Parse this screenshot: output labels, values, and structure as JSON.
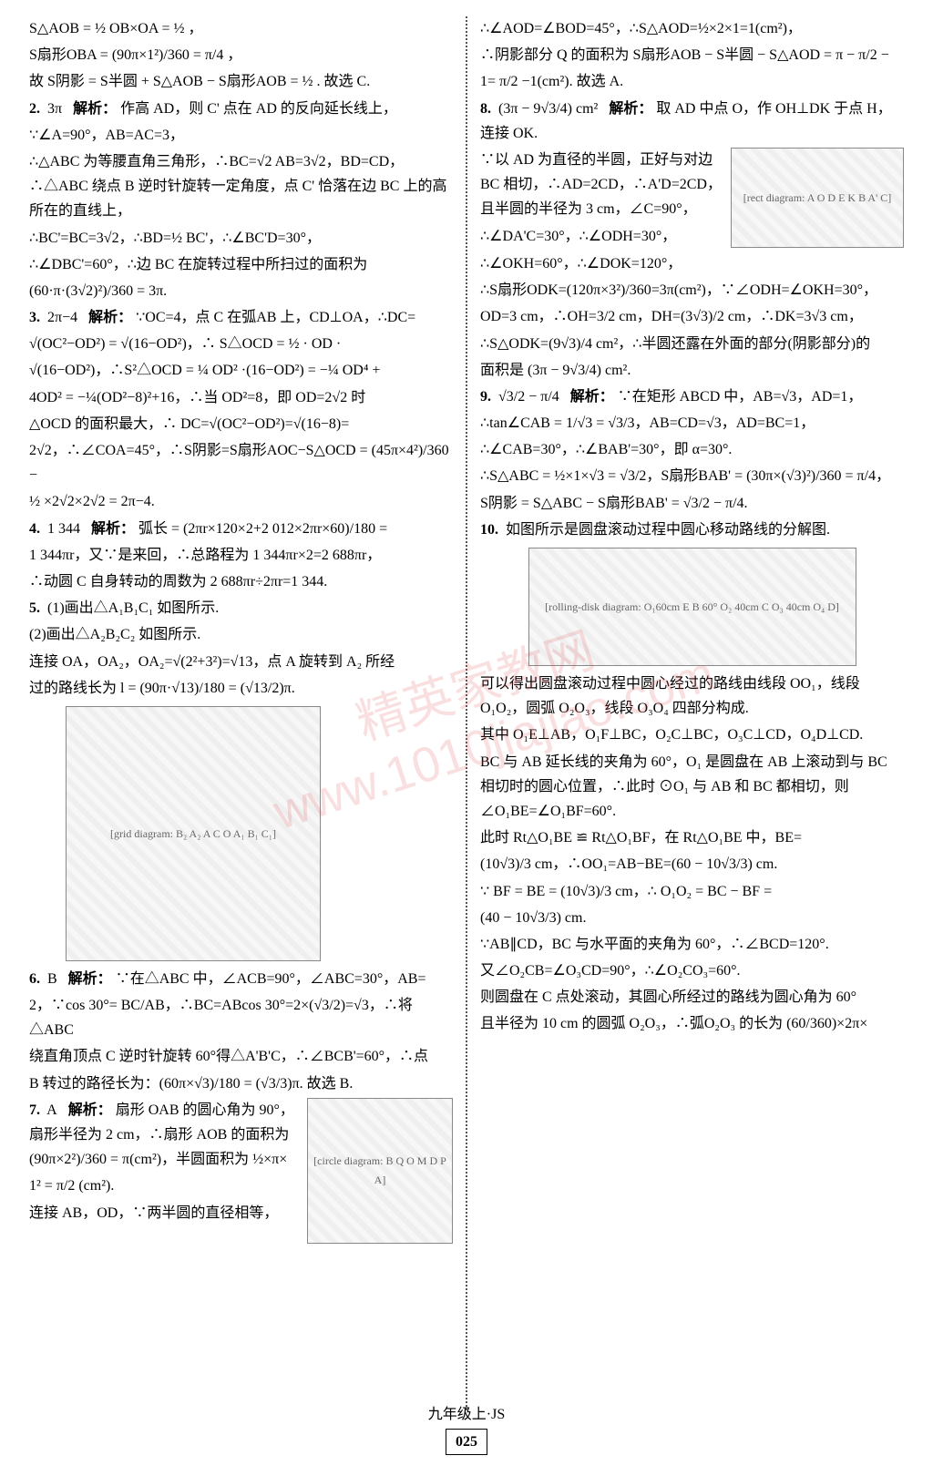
{
  "watermark": {
    "line1": "精英家教网",
    "line2": "www.1010jiajiao.com"
  },
  "footer": {
    "grade": "九年级上·JS",
    "page_number": "025"
  },
  "figures": {
    "grid": "[grid diagram: B₂ A₂ A C O A₁ B₁ C₁]",
    "circle": "[circle diagram: B Q O M D P A]",
    "rect": "[rect diagram: A O D E K B A' C]",
    "roll": "[rolling-disk diagram: O₁60cm E B 60° O₂ 40cm C O₃ 40cm O₄ D]"
  },
  "left": {
    "pre": [
      "S△AOB = ½ OB×OA = ½ ，",
      "S扇形OBA = (90π×1²)/360 = π/4 ，",
      "故 S阴影 = S半圆 + S△AOB − S扇形AOB = ½ . 故选 C."
    ],
    "q2": {
      "num": "2.",
      "answer": "3π",
      "label": "解析：",
      "lines": [
        "作高 AD，则 C' 点在 AD 的反向延长线上，",
        "∵∠A=90°，AB=AC=3，",
        "∴△ABC 为等腰直角三角形，∴BC=√2 AB=3√2，BD=CD，∴△ABC 绕点 B 逆时针旋转一定角度，点 C' 恰落在边 BC 上的高所在的直线上，",
        "∴BC'=BC=3√2，∴BD=½ BC'，∴∠BC'D=30°，",
        "∴∠DBC'=60°，∴边 BC 在旋转过程中所扫过的面积为",
        "(60·π·(3√2)²)/360 = 3π."
      ]
    },
    "q3": {
      "num": "3.",
      "answer": "2π−4",
      "label": "解析：",
      "lines": [
        "∵OC=4，点 C 在弧AB 上，CD⊥OA，∴DC=",
        "√(OC²−OD²) = √(16−OD²)，∴ S△OCD = ½ · OD ·",
        "√(16−OD²)，∴S²△OCD = ¼ OD² ·(16−OD²) = −¼ OD⁴ +",
        "4OD² = −¼(OD²−8)²+16，∴当 OD²=8，即 OD=2√2 时",
        "△OCD 的面积最大，∴ DC=√(OC²−OD²)=√(16−8)=",
        "2√2，∴∠COA=45°，∴S阴影=S扇形AOC−S△OCD = (45π×4²)/360 −",
        "½ ×2√2×2√2 = 2π−4."
      ]
    },
    "q4": {
      "num": "4.",
      "answer": "1 344",
      "label": "解析：",
      "lines": [
        "弧长 = (2πr×120×2+2 012×2πr×60)/180 =",
        "1 344πr，又∵是来回，∴总路程为 1 344πr×2=2 688πr，",
        "∴动圆 C 自身转动的周数为 2 688πr÷2πr=1 344."
      ]
    },
    "q5": {
      "num": "5.",
      "lines_before_fig": [
        "(1)画出△A₁B₁C₁ 如图所示.",
        "(2)画出△A₂B₂C₂ 如图所示.",
        "连接 OA，OA₂，OA₂=√(2²+3²)=√13，点 A 旋转到 A₂ 所经",
        "过的路线长为 l = (90π·√13)/180 = (√13/2)π."
      ]
    },
    "q6": {
      "num": "6.",
      "answer": "B",
      "label": "解析：",
      "lines": [
        "∵在△ABC 中，∠ACB=90°，∠ABC=30°，AB=",
        "2，∵cos 30°= BC/AB，∴BC=ABcos 30°=2×(√3/2)=√3，∴将△ABC",
        "绕直角顶点 C 逆时针旋转 60°得△A'B'C，∴∠BCB'=60°，∴点",
        "B 转过的路径长为：(60π×√3)/180 = (√3/3)π. 故选 B."
      ]
    },
    "q7": {
      "num": "7.",
      "answer": "A",
      "label": "解析：",
      "lines": [
        "扇形 OAB 的圆心角为 90°，扇形半径为 2 cm，∴扇形 AOB 的面积为",
        "(90π×2²)/360 = π(cm²)，半圆面积为 ½×π×",
        "1² = π/2 (cm²).",
        "连接 AB，OD，∵两半圆的直径相等，"
      ]
    }
  },
  "right": {
    "pre": [
      "∴∠AOD=∠BOD=45°，∴S△AOD=½×2×1=1(cm²)，",
      "∴阴影部分 Q 的面积为 S扇形AOB − S半圆 − S△AOD = π − π/2 −",
      "1= π/2 −1(cm²). 故选 A."
    ],
    "q8": {
      "num": "8.",
      "answer": "(3π − 9√3/4) cm²",
      "label": "解析：",
      "lines_before_fig": [
        "取 AD 中点 O，作 OH⊥DK 于点 H，连接 OK."
      ],
      "lines_with_fig": [
        "∵以 AD 为直径的半圆，正好与对边 BC 相切，∴AD=2CD，∴A'D=2CD，且半圆的半径为 3 cm，∠C=90°，",
        "∴∠DA'C=30°，∴∠ODH=30°，"
      ],
      "lines_after_fig": [
        "∴∠OKH=60°，∴∠DOK=120°，",
        "∴S扇形ODK=(120π×3²)/360=3π(cm²)，∵∠ODH=∠OKH=30°，",
        "OD=3 cm，∴OH=3/2 cm，DH=(3√3)/2 cm，∴DK=3√3 cm，",
        "∴S△ODK=(9√3)/4 cm²，∴半圆还露在外面的部分(阴影部分)的",
        "面积是 (3π − 9√3/4) cm²."
      ]
    },
    "q9": {
      "num": "9.",
      "answer": "√3/2 − π/4",
      "label": "解析：",
      "lines": [
        "∵在矩形 ABCD 中，AB=√3，AD=1，",
        "∴tan∠CAB = 1/√3 = √3/3，AB=CD=√3，AD=BC=1，",
        "∴∠CAB=30°，∴∠BAB'=30°，即 α=30°.",
        "∴S△ABC = ½×1×√3 = √3/2，S扇形BAB' = (30π×(√3)²)/360 = π/4，",
        "S阴影 = S△ABC − S扇形BAB' = √3/2 − π/4."
      ]
    },
    "q10": {
      "num": "10.",
      "intro": "如图所示是圆盘滚动过程中圆心移动路线的分解图.",
      "lines": [
        "可以得出圆盘滚动过程中圆心经过的路线由线段 OO₁，线段 O₁O₂，圆弧 O₂O₃，线段 O₃O₄ 四部分构成.",
        "其中 O₁E⊥AB，O₁F⊥BC，O₂C⊥BC，O₃C⊥CD，O₄D⊥CD.",
        "BC 与 AB 延长线的夹角为 60°，O₁ 是圆盘在 AB 上滚动到与 BC 相切时的圆心位置，∴此时 ⊙O₁ 与 AB 和 BC 都相切，则∠O₁BE=∠O₁BF=60°.",
        "此时 Rt△O₁BE ≌ Rt△O₁BF，在 Rt△O₁BE 中，BE=",
        "(10√3)/3 cm，∴OO₁=AB−BE=(60 − 10√3/3) cm.",
        "∵ BF = BE = (10√3)/3 cm，∴ O₁O₂ = BC − BF =",
        "(40 − 10√3/3) cm.",
        "∵AB∥CD，BC 与水平面的夹角为 60°，∴∠BCD=120°.",
        "又∠O₂CB=∠O₃CD=90°，∴∠O₂CO₃=60°.",
        "则圆盘在 C 点处滚动，其圆心所经过的路线为圆心角为 60°",
        "且半径为 10 cm 的圆弧 O₂O₃，∴弧O₂O₃ 的长为 (60/360)×2π×"
      ]
    }
  }
}
